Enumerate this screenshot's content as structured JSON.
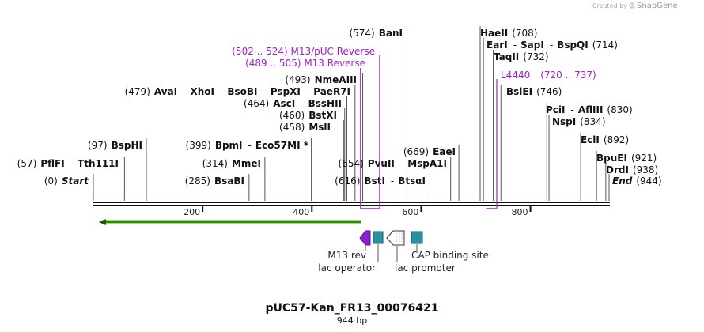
{
  "credit": {
    "prefix": "Created by",
    "brand": "SnapGene"
  },
  "map": {
    "title": "pUC57-Kan_FR13_00076421",
    "length_label": "944 bp",
    "length_bp": 944,
    "ticks": [
      {
        "pos": 200,
        "label": "200"
      },
      {
        "pos": 400,
        "label": "400"
      },
      {
        "pos": 600,
        "label": "600"
      },
      {
        "pos": 800,
        "label": "800"
      }
    ]
  },
  "sites": [
    {
      "id": "start",
      "pos": 0,
      "parts": [
        {
          "t": "(0)",
          "k": "num"
        },
        {
          "t": "Start",
          "k": "italic"
        }
      ]
    },
    {
      "id": "pflfi",
      "pos": 57,
      "parts": [
        {
          "t": "(57)",
          "k": "num"
        },
        {
          "t": "PflFI",
          "k": "name"
        },
        {
          "t": "-",
          "k": "sep"
        },
        {
          "t": "Tth111I",
          "k": "name"
        }
      ]
    },
    {
      "id": "bsphi",
      "pos": 97,
      "parts": [
        {
          "t": "(97)",
          "k": "num"
        },
        {
          "t": "BspHI",
          "k": "name"
        }
      ]
    },
    {
      "id": "bsabi",
      "pos": 285,
      "parts": [
        {
          "t": "(285)",
          "k": "num"
        },
        {
          "t": "BsaBI",
          "k": "name"
        }
      ]
    },
    {
      "id": "mmei",
      "pos": 314,
      "parts": [
        {
          "t": "(314)",
          "k": "num"
        },
        {
          "t": "MmeI",
          "k": "name"
        }
      ]
    },
    {
      "id": "bpmi",
      "pos": 399,
      "parts": [
        {
          "t": "(399)",
          "k": "num"
        },
        {
          "t": "BpmI",
          "k": "name"
        },
        {
          "t": "-",
          "k": "sep"
        },
        {
          "t": "Eco57MI *",
          "k": "name"
        }
      ]
    },
    {
      "id": "msli",
      "pos": 458,
      "parts": [
        {
          "t": "(458)",
          "k": "num"
        },
        {
          "t": "MslI",
          "k": "name"
        }
      ]
    },
    {
      "id": "bstxi",
      "pos": 460,
      "parts": [
        {
          "t": "(460)",
          "k": "num"
        },
        {
          "t": "BstXI",
          "k": "name"
        }
      ]
    },
    {
      "id": "asci",
      "pos": 464,
      "parts": [
        {
          "t": "(464)",
          "k": "num"
        },
        {
          "t": "AscI",
          "k": "name"
        },
        {
          "t": "-",
          "k": "sep"
        },
        {
          "t": "BssHII",
          "k": "name"
        }
      ]
    },
    {
      "id": "avai",
      "pos": 479,
      "parts": [
        {
          "t": "(479)",
          "k": "num"
        },
        {
          "t": "AvaI",
          "k": "name"
        },
        {
          "t": "-",
          "k": "sep"
        },
        {
          "t": "XhoI",
          "k": "name"
        },
        {
          "t": "-",
          "k": "sep"
        },
        {
          "t": "BsoBI",
          "k": "name"
        },
        {
          "t": "-",
          "k": "sep"
        },
        {
          "t": "PspXI",
          "k": "name"
        },
        {
          "t": "-",
          "k": "sep"
        },
        {
          "t": "PaeR7I",
          "k": "name"
        }
      ]
    },
    {
      "id": "nmeaiii",
      "pos": 493,
      "parts": [
        {
          "t": "(493)",
          "k": "num"
        },
        {
          "t": "NmeAIII",
          "k": "name"
        }
      ]
    },
    {
      "id": "bani",
      "pos": 574,
      "parts": [
        {
          "t": "(574)",
          "k": "num"
        },
        {
          "t": "BanI",
          "k": "name"
        }
      ]
    },
    {
      "id": "bsti",
      "pos": 616,
      "parts": [
        {
          "t": "(616)",
          "k": "num"
        },
        {
          "t": "BstI",
          "k": "name"
        },
        {
          "t": "-",
          "k": "sep"
        },
        {
          "t": "BtsαI",
          "k": "name"
        }
      ]
    },
    {
      "id": "pvuii",
      "pos": 654,
      "parts": [
        {
          "t": "(654)",
          "k": "num"
        },
        {
          "t": "PvuII",
          "k": "name"
        },
        {
          "t": "-",
          "k": "sep"
        },
        {
          "t": "MspA1I",
          "k": "name"
        }
      ]
    },
    {
      "id": "eaei",
      "pos": 669,
      "parts": [
        {
          "t": "(669)",
          "k": "num"
        },
        {
          "t": "EaeI",
          "k": "name"
        }
      ]
    },
    {
      "id": "haeii",
      "pos": 708,
      "parts": [
        {
          "t": "HaeII",
          "k": "name"
        },
        {
          "t": "(708)",
          "k": "num"
        }
      ]
    },
    {
      "id": "eari",
      "pos": 714,
      "parts": [
        {
          "t": "EarI",
          "k": "name"
        },
        {
          "t": "-",
          "k": "sep"
        },
        {
          "t": "SapI",
          "k": "name"
        },
        {
          "t": "-",
          "k": "sep"
        },
        {
          "t": "BspQI",
          "k": "name"
        },
        {
          "t": "(714)",
          "k": "num"
        }
      ]
    },
    {
      "id": "taqii",
      "pos": 732,
      "parts": [
        {
          "t": "TaqII",
          "k": "name"
        },
        {
          "t": "(732)",
          "k": "num"
        }
      ]
    },
    {
      "id": "bsiei",
      "pos": 746,
      "parts": [
        {
          "t": "BsiEI",
          "k": "name"
        },
        {
          "t": "(746)",
          "k": "num"
        }
      ]
    },
    {
      "id": "pcii",
      "pos": 830,
      "parts": [
        {
          "t": "PciI",
          "k": "name"
        },
        {
          "t": "-",
          "k": "sep"
        },
        {
          "t": "AflIII",
          "k": "name"
        },
        {
          "t": "(830)",
          "k": "num"
        }
      ]
    },
    {
      "id": "nspi",
      "pos": 834,
      "parts": [
        {
          "t": "NspI",
          "k": "name"
        },
        {
          "t": "(834)",
          "k": "num"
        }
      ]
    },
    {
      "id": "ecli",
      "pos": 892,
      "parts": [
        {
          "t": "EclI",
          "k": "name"
        },
        {
          "t": "(892)",
          "k": "num"
        }
      ]
    },
    {
      "id": "bpuei",
      "pos": 921,
      "parts": [
        {
          "t": "BpuEI",
          "k": "name"
        },
        {
          "t": "(921)",
          "k": "num"
        }
      ]
    },
    {
      "id": "drdi",
      "pos": 938,
      "parts": [
        {
          "t": "DrdI",
          "k": "name"
        },
        {
          "t": "(938)",
          "k": "num"
        }
      ]
    },
    {
      "id": "end",
      "pos": 944,
      "parts": [
        {
          "t": "End",
          "k": "italic"
        },
        {
          "t": "(944)",
          "k": "num"
        }
      ]
    }
  ],
  "primers": [
    {
      "id": "m13puc-reverse",
      "start": 502,
      "end": 524,
      "text": "(502 .. 524)  M13/pUC Reverse",
      "color": "#a020c8"
    },
    {
      "id": "m13-reverse",
      "start": 489,
      "end": 505,
      "text": "(489 .. 505)  M13 Reverse",
      "color": "#a020c8"
    },
    {
      "id": "l4440",
      "start": 720,
      "end": 737,
      "name": "L4440",
      "range": "(720 .. 737)",
      "color": "#a020c8"
    }
  ],
  "features": [
    {
      "id": "kanr-orf",
      "start": 10,
      "end": 490,
      "direction": "reverse",
      "color": "#8bd35a"
    },
    {
      "id": "m13-rev-feature",
      "label": "M13 rev",
      "color": "#8a1fd0"
    },
    {
      "id": "lac-operator-feature",
      "label": "lac operator",
      "color": "#2a8fa0"
    },
    {
      "id": "lac-promoter-feature",
      "label": "lac promoter",
      "color": "#ffffff"
    },
    {
      "id": "cap-binding-feature",
      "label": "CAP binding site",
      "color": "#2a8fa0"
    }
  ]
}
